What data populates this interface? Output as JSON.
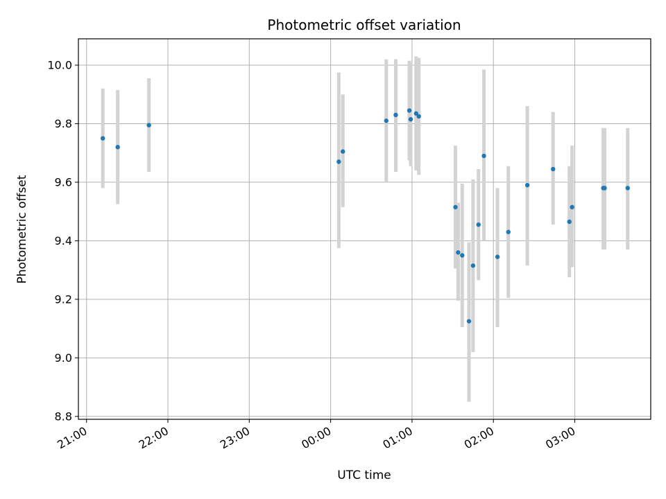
{
  "chart_data": {
    "type": "scatter",
    "title": "Photometric offset variation",
    "xlabel": "UTC time",
    "ylabel": "Photometric offset",
    "xlim": [
      "20:54",
      "27:56"
    ],
    "ylim": [
      8.79,
      10.09
    ],
    "grid": true,
    "x_ticks": [
      "21:00",
      "22:00",
      "23:00",
      "00:00",
      "01:00",
      "02:00",
      "03:00"
    ],
    "y_ticks": [
      "8.8",
      "9.0",
      "9.2",
      "9.4",
      "9.6",
      "9.8",
      "10.0"
    ],
    "colors": {
      "point": "#1f77b4",
      "errorbar": "#d3d3d3",
      "grid": "#b0b0b0"
    },
    "points": [
      {
        "x": "21:12",
        "y": 9.75,
        "ylow": 9.58,
        "yhigh": 9.92
      },
      {
        "x": "21:23",
        "y": 9.72,
        "ylow": 9.525,
        "yhigh": 9.915
      },
      {
        "x": "21:46",
        "y": 9.795,
        "ylow": 9.635,
        "yhigh": 9.955
      },
      {
        "x": "00:06",
        "y": 9.67,
        "ylow": 9.375,
        "yhigh": 9.975
      },
      {
        "x": "00:09",
        "y": 9.705,
        "ylow": 9.515,
        "yhigh": 9.9
      },
      {
        "x": "00:41",
        "y": 9.81,
        "ylow": 9.6,
        "yhigh": 10.02
      },
      {
        "x": "00:48",
        "y": 9.83,
        "ylow": 9.635,
        "yhigh": 10.02
      },
      {
        "x": "00:58",
        "y": 9.845,
        "ylow": 9.675,
        "yhigh": 10.015
      },
      {
        "x": "00:59",
        "y": 9.815,
        "ylow": 9.655,
        "yhigh": 10.01
      },
      {
        "x": "01:03",
        "y": 9.835,
        "ylow": 9.64,
        "yhigh": 10.03
      },
      {
        "x": "01:05",
        "y": 9.825,
        "ylow": 9.625,
        "yhigh": 10.025
      },
      {
        "x": "01:32",
        "y": 9.515,
        "ylow": 9.305,
        "yhigh": 9.725
      },
      {
        "x": "01:34",
        "y": 9.36,
        "ylow": 9.195,
        "yhigh": 9.53
      },
      {
        "x": "01:37",
        "y": 9.35,
        "ylow": 9.105,
        "yhigh": 9.595
      },
      {
        "x": "01:42",
        "y": 9.125,
        "ylow": 8.85,
        "yhigh": 9.395
      },
      {
        "x": "01:45",
        "y": 9.315,
        "ylow": 9.02,
        "yhigh": 9.61
      },
      {
        "x": "01:49",
        "y": 9.455,
        "ylow": 9.265,
        "yhigh": 9.645
      },
      {
        "x": "01:53",
        "y": 9.69,
        "ylow": 9.4,
        "yhigh": 9.985
      },
      {
        "x": "02:03",
        "y": 9.345,
        "ylow": 9.105,
        "yhigh": 9.58
      },
      {
        "x": "02:11",
        "y": 9.43,
        "ylow": 9.205,
        "yhigh": 9.655
      },
      {
        "x": "02:25",
        "y": 9.59,
        "ylow": 9.315,
        "yhigh": 9.86
      },
      {
        "x": "02:44",
        "y": 9.645,
        "ylow": 9.455,
        "yhigh": 9.84
      },
      {
        "x": "02:56",
        "y": 9.465,
        "ylow": 9.275,
        "yhigh": 9.655
      },
      {
        "x": "02:58",
        "y": 9.515,
        "ylow": 9.31,
        "yhigh": 9.725
      },
      {
        "x": "03:21",
        "y": 9.58,
        "ylow": 9.37,
        "yhigh": 9.785
      },
      {
        "x": "03:22",
        "y": 9.58,
        "ylow": 9.37,
        "yhigh": 9.785
      },
      {
        "x": "03:39",
        "y": 9.58,
        "ylow": 9.37,
        "yhigh": 9.785
      }
    ]
  }
}
